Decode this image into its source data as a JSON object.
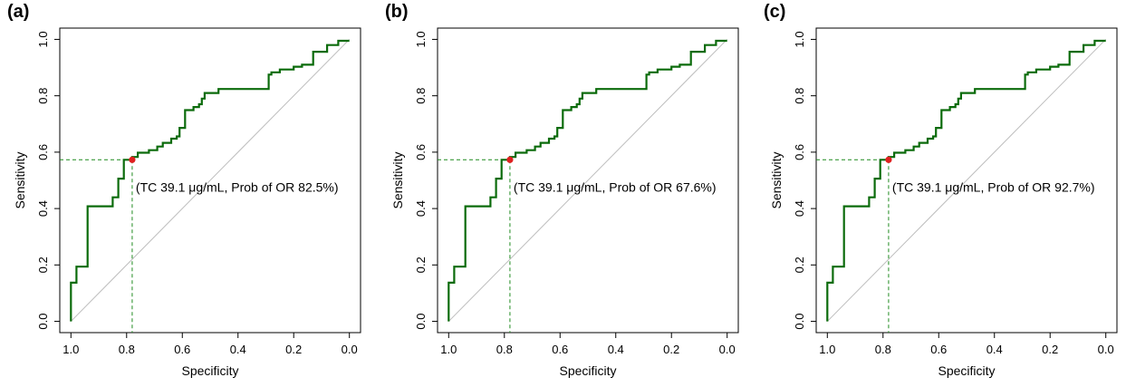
{
  "chart_data": [
    {
      "type": "line",
      "panel_label": "(a)",
      "xlabel": "Specificity",
      "ylabel": "Sensitivity",
      "xlim": [
        1.04,
        -0.04
      ],
      "ylim": [
        -0.04,
        1.04
      ],
      "x_ticks": [
        "1.0",
        "0.8",
        "0.6",
        "0.4",
        "0.2",
        "0.0"
      ],
      "y_ticks": [
        "0.0",
        "0.2",
        "0.4",
        "0.6",
        "0.8",
        "1.0"
      ],
      "reference_line": {
        "from": [
          1.0,
          0.0
        ],
        "to": [
          0.0,
          1.0
        ]
      },
      "cutoff": {
        "specificity": 0.78,
        "sensitivity": 0.573
      },
      "annotation": "(TC 39.1 μg/mL, Prob of OR 82.5%)",
      "series": [
        {
          "x": [
            1.0,
            1.0,
            0.98,
            0.98,
            0.94,
            0.94,
            0.85,
            0.85,
            0.83,
            0.83,
            0.81,
            0.81,
            0.78,
            0.78,
            0.76,
            0.76,
            0.72,
            0.72,
            0.69,
            0.69,
            0.67,
            0.67,
            0.64,
            0.64,
            0.62,
            0.62,
            0.61,
            0.61,
            0.59,
            0.59,
            0.56,
            0.56,
            0.54,
            0.54,
            0.53,
            0.53,
            0.52,
            0.52,
            0.47,
            0.47,
            0.29,
            0.29,
            0.28,
            0.28,
            0.25,
            0.25,
            0.2,
            0.2,
            0.17,
            0.17,
            0.13,
            0.13,
            0.08,
            0.08,
            0.04,
            0.04,
            0.0
          ],
          "y": [
            0.0,
            0.137,
            0.137,
            0.194,
            0.194,
            0.408,
            0.408,
            0.44,
            0.44,
            0.506,
            0.506,
            0.573,
            0.573,
            0.583,
            0.583,
            0.598,
            0.598,
            0.607,
            0.607,
            0.62,
            0.62,
            0.633,
            0.633,
            0.648,
            0.648,
            0.656,
            0.656,
            0.686,
            0.686,
            0.749,
            0.749,
            0.76,
            0.76,
            0.77,
            0.77,
            0.79,
            0.79,
            0.81,
            0.81,
            0.824,
            0.824,
            0.875,
            0.875,
            0.883,
            0.883,
            0.893,
            0.893,
            0.903,
            0.903,
            0.91,
            0.91,
            0.956,
            0.956,
            0.98,
            0.98,
            0.995,
            0.995
          ]
        }
      ]
    },
    {
      "type": "line",
      "panel_label": "(b)",
      "xlabel": "Specificity",
      "ylabel": "Sensitivity",
      "xlim": [
        1.04,
        -0.04
      ],
      "ylim": [
        -0.04,
        1.04
      ],
      "x_ticks": [
        "1.0",
        "0.8",
        "0.6",
        "0.4",
        "0.2",
        "0.0"
      ],
      "y_ticks": [
        "0.0",
        "0.2",
        "0.4",
        "0.6",
        "0.8",
        "1.0"
      ],
      "reference_line": {
        "from": [
          1.0,
          0.0
        ],
        "to": [
          0.0,
          1.0
        ]
      },
      "cutoff": {
        "specificity": 0.78,
        "sensitivity": 0.573
      },
      "annotation": "(TC 39.1 μg/mL, Prob of OR 67.6%)",
      "series": [
        {
          "x": [
            1.0,
            1.0,
            0.98,
            0.98,
            0.94,
            0.94,
            0.85,
            0.85,
            0.83,
            0.83,
            0.81,
            0.81,
            0.78,
            0.78,
            0.76,
            0.76,
            0.72,
            0.72,
            0.69,
            0.69,
            0.67,
            0.67,
            0.64,
            0.64,
            0.62,
            0.62,
            0.61,
            0.61,
            0.59,
            0.59,
            0.56,
            0.56,
            0.54,
            0.54,
            0.53,
            0.53,
            0.52,
            0.52,
            0.47,
            0.47,
            0.29,
            0.29,
            0.28,
            0.28,
            0.25,
            0.25,
            0.2,
            0.2,
            0.17,
            0.17,
            0.13,
            0.13,
            0.08,
            0.08,
            0.04,
            0.04,
            0.0
          ],
          "y": [
            0.0,
            0.137,
            0.137,
            0.194,
            0.194,
            0.408,
            0.408,
            0.44,
            0.44,
            0.506,
            0.506,
            0.573,
            0.573,
            0.583,
            0.583,
            0.598,
            0.598,
            0.607,
            0.607,
            0.62,
            0.62,
            0.633,
            0.633,
            0.648,
            0.648,
            0.656,
            0.656,
            0.686,
            0.686,
            0.749,
            0.749,
            0.76,
            0.76,
            0.77,
            0.77,
            0.79,
            0.79,
            0.81,
            0.81,
            0.824,
            0.824,
            0.875,
            0.875,
            0.883,
            0.883,
            0.893,
            0.893,
            0.903,
            0.903,
            0.91,
            0.91,
            0.956,
            0.956,
            0.98,
            0.98,
            0.995,
            0.995
          ]
        }
      ]
    },
    {
      "type": "line",
      "panel_label": "(c)",
      "xlabel": "Specificity",
      "ylabel": "Sensitivity",
      "xlim": [
        1.04,
        -0.04
      ],
      "ylim": [
        -0.04,
        1.04
      ],
      "x_ticks": [
        "1.0",
        "0.8",
        "0.6",
        "0.4",
        "0.2",
        "0.0"
      ],
      "y_ticks": [
        "0.0",
        "0.2",
        "0.4",
        "0.6",
        "0.8",
        "1.0"
      ],
      "reference_line": {
        "from": [
          1.0,
          0.0
        ],
        "to": [
          0.0,
          1.0
        ]
      },
      "cutoff": {
        "specificity": 0.78,
        "sensitivity": 0.573
      },
      "annotation": "(TC 39.1 μg/mL, Prob of OR 92.7%)",
      "series": [
        {
          "x": [
            1.0,
            1.0,
            0.98,
            0.98,
            0.94,
            0.94,
            0.85,
            0.85,
            0.83,
            0.83,
            0.81,
            0.81,
            0.78,
            0.78,
            0.76,
            0.76,
            0.72,
            0.72,
            0.69,
            0.69,
            0.67,
            0.67,
            0.64,
            0.64,
            0.62,
            0.62,
            0.61,
            0.61,
            0.59,
            0.59,
            0.56,
            0.56,
            0.54,
            0.54,
            0.53,
            0.53,
            0.52,
            0.52,
            0.47,
            0.47,
            0.29,
            0.29,
            0.28,
            0.28,
            0.25,
            0.25,
            0.2,
            0.2,
            0.17,
            0.17,
            0.13,
            0.13,
            0.08,
            0.08,
            0.04,
            0.04,
            0.0
          ],
          "y": [
            0.0,
            0.137,
            0.137,
            0.194,
            0.194,
            0.408,
            0.408,
            0.44,
            0.44,
            0.506,
            0.506,
            0.573,
            0.573,
            0.583,
            0.583,
            0.598,
            0.598,
            0.607,
            0.607,
            0.62,
            0.62,
            0.633,
            0.633,
            0.648,
            0.648,
            0.656,
            0.656,
            0.686,
            0.686,
            0.749,
            0.749,
            0.76,
            0.76,
            0.77,
            0.77,
            0.79,
            0.79,
            0.81,
            0.81,
            0.824,
            0.824,
            0.875,
            0.875,
            0.883,
            0.883,
            0.893,
            0.893,
            0.903,
            0.903,
            0.91,
            0.91,
            0.956,
            0.956,
            0.98,
            0.98,
            0.995,
            0.995
          ]
        }
      ]
    }
  ],
  "colors": {
    "roc_line": "#0b6b0b",
    "cutoff_guides": "#1f8a1f",
    "cutoff_point": "#e02020",
    "reference_line": "#bdbdbd"
  }
}
